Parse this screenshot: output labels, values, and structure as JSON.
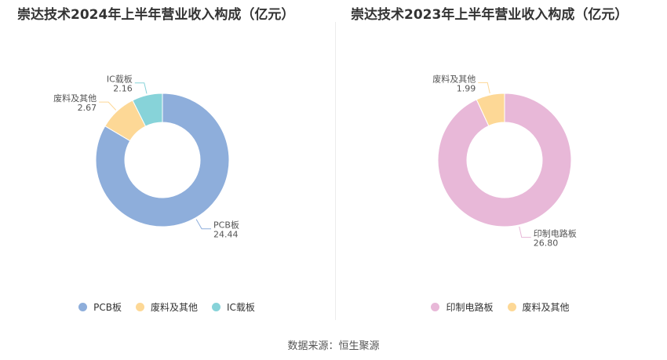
{
  "chart_data": [
    {
      "type": "pie",
      "donut": true,
      "title": "崇达技术2024年上半年营业收入构成（亿元）",
      "series": [
        {
          "name": "PCB板",
          "value": 24.44,
          "value_label": "24.44",
          "color": "#8eaedb"
        },
        {
          "name": "废料及其他",
          "value": 2.67,
          "value_label": "2.67",
          "color": "#fdd896"
        },
        {
          "name": "IC载板",
          "value": 2.16,
          "value_label": "2.16",
          "color": "#87d3d9"
        }
      ],
      "legend_position": "bottom"
    },
    {
      "type": "pie",
      "donut": true,
      "title": "崇达技术2023年上半年营业收入构成（亿元）",
      "series": [
        {
          "name": "印制电路板",
          "value": 26.8,
          "value_label": "26.80",
          "color": "#e8b8d8"
        },
        {
          "name": "废料及其他",
          "value": 1.99,
          "value_label": "1.99",
          "color": "#fdd896"
        }
      ],
      "legend_position": "bottom"
    }
  ],
  "source_text": "数据来源：恒生聚源"
}
